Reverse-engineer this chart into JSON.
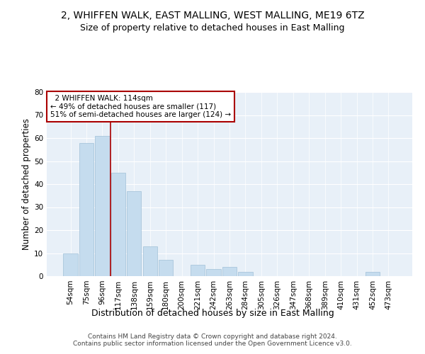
{
  "title": "2, WHIFFEN WALK, EAST MALLING, WEST MALLING, ME19 6TZ",
  "subtitle": "Size of property relative to detached houses in East Malling",
  "xlabel": "Distribution of detached houses by size in East Malling",
  "ylabel": "Number of detached properties",
  "bar_values": [
    10,
    58,
    61,
    45,
    37,
    13,
    7,
    0,
    5,
    3,
    4,
    2,
    0,
    0,
    0,
    0,
    0,
    0,
    0,
    2,
    0
  ],
  "categories": [
    "54sqm",
    "75sqm",
    "96sqm",
    "117sqm",
    "138sqm",
    "159sqm",
    "180sqm",
    "200sqm",
    "221sqm",
    "242sqm",
    "263sqm",
    "284sqm",
    "305sqm",
    "326sqm",
    "347sqm",
    "368sqm",
    "389sqm",
    "410sqm",
    "431sqm",
    "452sqm",
    "473sqm"
  ],
  "bar_color": "#c5dcee",
  "bar_edge_color": "#a0c0d8",
  "vline_color": "#aa0000",
  "vline_x_index": 2,
  "annotation_text": "  2 WHIFFEN WALK: 114sqm\n← 49% of detached houses are smaller (117)\n51% of semi-detached houses are larger (124) →",
  "annotation_box_color": "#ffffff",
  "annotation_box_edge": "#aa0000",
  "ylim": [
    0,
    80
  ],
  "yticks": [
    0,
    10,
    20,
    30,
    40,
    50,
    60,
    70,
    80
  ],
  "bg_color": "#e8f0f8",
  "footer_text": "Contains HM Land Registry data © Crown copyright and database right 2024.\nContains public sector information licensed under the Open Government Licence v3.0.",
  "title_fontsize": 10,
  "subtitle_fontsize": 9,
  "axis_label_fontsize": 8.5,
  "tick_fontsize": 7.5,
  "annotation_fontsize": 7.5,
  "footer_fontsize": 6.5
}
